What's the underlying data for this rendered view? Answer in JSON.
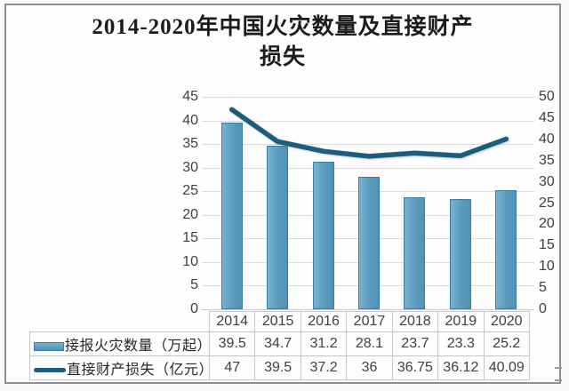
{
  "title": {
    "line1": "2014-2020年中国火灾数量及直接财产",
    "line2": "损失"
  },
  "chart_data": {
    "type": "bar+line combo with data table legend",
    "categories": [
      "2014",
      "2015",
      "2016",
      "2017",
      "2018",
      "2019",
      "2020"
    ],
    "series": [
      {
        "name": "接报火灾数量（万起）",
        "type": "bar",
        "axis": "left",
        "values": [
          39.5,
          34.7,
          31.2,
          28.1,
          23.7,
          23.3,
          25.2
        ]
      },
      {
        "name": "直接财产损失（亿元）",
        "type": "line",
        "axis": "right",
        "values": [
          47,
          39.5,
          37.2,
          36,
          36.75,
          36.12,
          40.09
        ]
      }
    ],
    "title": "2014-2020年中国火灾数量及直接财产损失",
    "left_axis": {
      "min": 0,
      "max": 45,
      "step": 5,
      "ticks": [
        0,
        5,
        10,
        15,
        20,
        25,
        30,
        35,
        40,
        45
      ]
    },
    "right_axis": {
      "min": 0,
      "max": 50,
      "step": 5,
      "ticks": [
        0,
        5,
        10,
        15,
        20,
        25,
        30,
        35,
        40,
        45,
        50
      ]
    },
    "grid": true,
    "legend_position": "bottom-table"
  },
  "colors": {
    "bar_fill": "#5e9ec1",
    "bar_border": "#3a7ea5",
    "line": "#1b5d7e",
    "gridline": "#dcdcdc",
    "axis_text": "#3f3f3f",
    "table_border": "#c6c6c6",
    "frame_border": "#909090",
    "title_text": "#1c1c1c"
  }
}
